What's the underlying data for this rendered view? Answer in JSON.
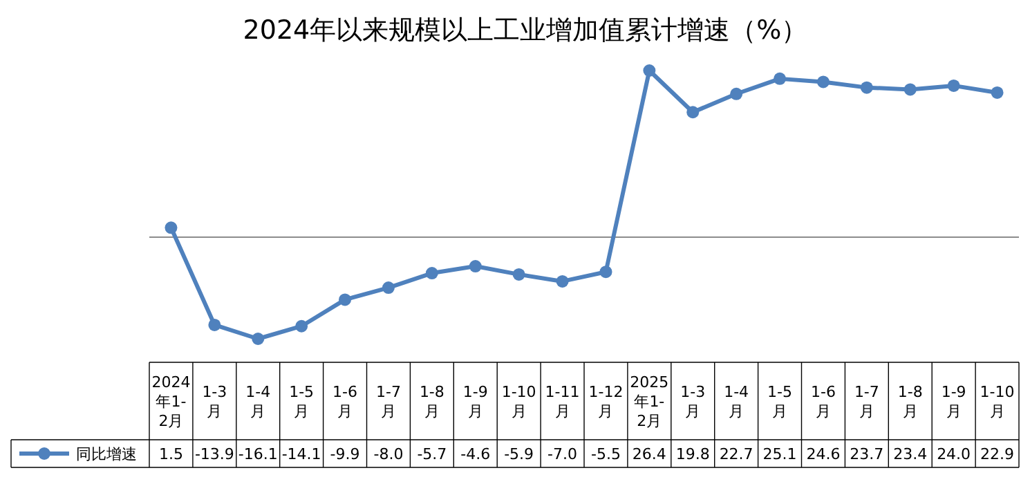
{
  "chart_data": {
    "type": "line",
    "title": "2024年以来规模以上工业增加值累计增速（%）",
    "categories": [
      "2024年1-2月",
      "1-3月",
      "1-4月",
      "1-5月",
      "1-6月",
      "1-7月",
      "1-8月",
      "1-9月",
      "1-10月",
      "1-11月",
      "1-12月",
      "2025年1-2月",
      "1-3月",
      "1-4月",
      "1-5月",
      "1-6月",
      "1-7月",
      "1-8月",
      "1-9月",
      "1-10月"
    ],
    "series": [
      {
        "name": "同比增速",
        "color": "#4f81bd",
        "values": [
          1.5,
          -13.9,
          -16.1,
          -14.1,
          -9.9,
          -8.0,
          -5.7,
          -4.6,
          -5.9,
          -7.0,
          -5.5,
          26.4,
          19.8,
          22.7,
          25.1,
          24.6,
          23.7,
          23.4,
          24.0,
          22.9
        ],
        "value_labels": [
          "1.5",
          "-13.9",
          "-16.1",
          "-14.1",
          "-9.9",
          "-8.0",
          "-5.7",
          "-4.6",
          "-5.9",
          "-7.0",
          "-5.5",
          "26.4",
          "19.8",
          "22.7",
          "25.1",
          "24.6",
          "23.7",
          "23.4",
          "24.0",
          "22.9"
        ]
      }
    ],
    "marker": "circle",
    "legend": "bottom"
  }
}
